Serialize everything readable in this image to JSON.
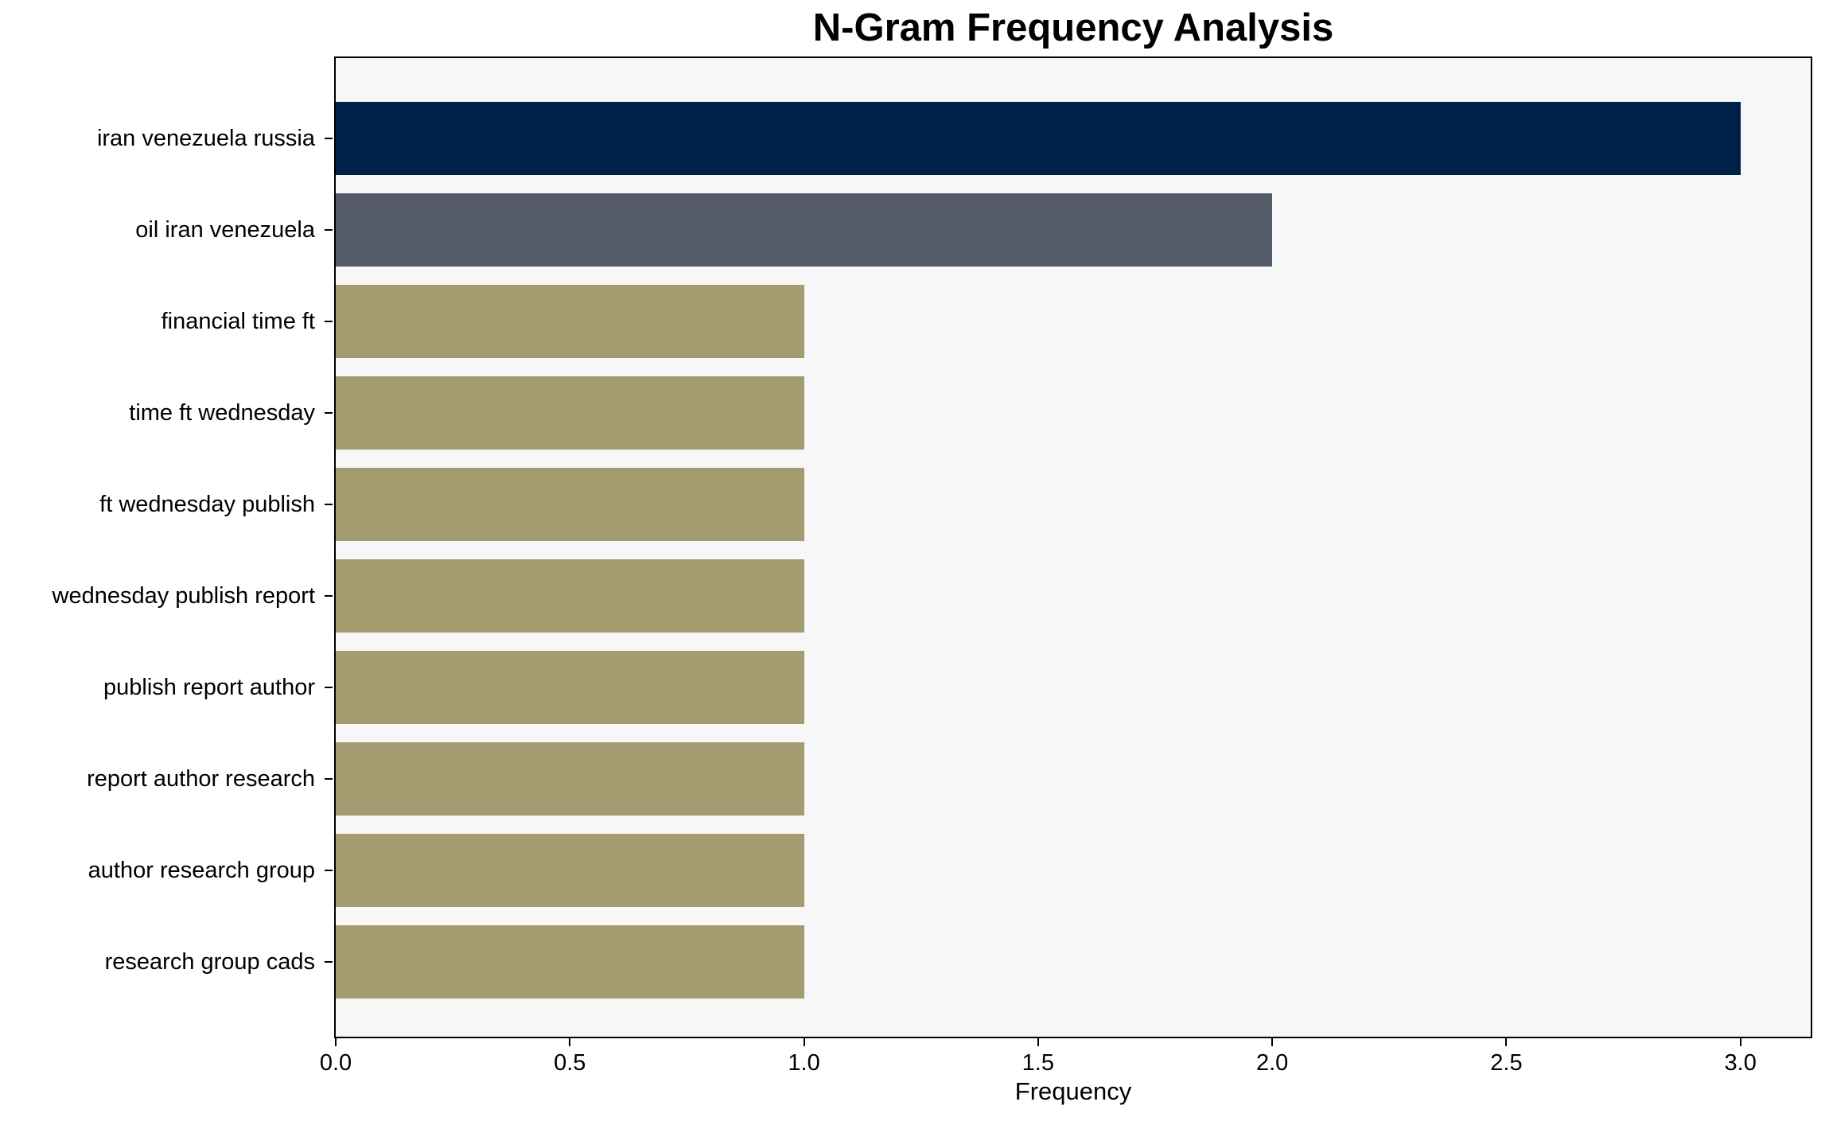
{
  "chart_data": {
    "type": "bar",
    "orientation": "horizontal",
    "title": "N-Gram Frequency Analysis",
    "xlabel": "Frequency",
    "categories": [
      "iran venezuela russia",
      "oil iran venezuela",
      "financial time ft",
      "time ft wednesday",
      "ft wednesday publish",
      "wednesday publish report",
      "publish report author",
      "report author research",
      "author research group",
      "research group cads"
    ],
    "values": [
      3,
      2,
      1,
      1,
      1,
      1,
      1,
      1,
      1,
      1
    ],
    "xticks": [
      0.0,
      0.5,
      1.0,
      1.5,
      2.0,
      2.5,
      3.0
    ],
    "xtick_labels": [
      "0.0",
      "0.5",
      "1.0",
      "1.5",
      "2.0",
      "2.5",
      "3.0"
    ],
    "xlim": [
      0,
      3.15
    ],
    "grid": false,
    "legend": null,
    "colors": {
      "bars": [
        "#002147",
        "#565b6a",
        "#a49b70",
        "#a49b70",
        "#a49b70",
        "#a49b70",
        "#a49b70",
        "#a49b70",
        "#a49b70",
        "#a49b70"
      ],
      "plot_background": "#f7f7f8",
      "figure_background": "#ffffff",
      "spine": "#000000",
      "text": "#000000"
    }
  }
}
